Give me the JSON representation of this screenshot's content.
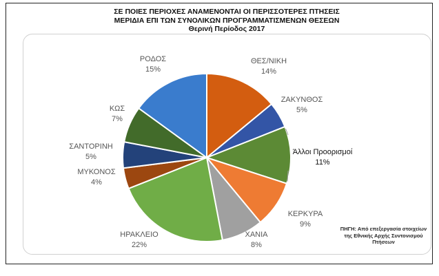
{
  "title_lines": [
    "ΣΕ ΠΟΙΕΣ ΠΕΡΙΟΧΕΣ ΑΝΑΜΕΝΟΝΤΑΙ ΟΙ ΠΕΡΙΣΣΟΤΕΡΕΣ ΠΤΗΣΕΙΣ",
    "ΜΕΡΙΔΙΑ ΕΠΙ ΤΩΝ ΣΥΝΟΛΙΚΩΝ ΠΡΟΓΡΑΜΜΑΤΙΣΜΕΝΩΝ ΘΕΣΕΩΝ",
    "Θερινή Περίοδος 2017"
  ],
  "source_lines": [
    "ΠΗΓΗ: Από επεξεργασία στοιχείων",
    "της Εθνικής Αρχής Συντονισμού",
    "Πτήσεων"
  ],
  "chart_data": {
    "type": "pie",
    "unit": "%",
    "slices": [
      {
        "label": "ΘΕΣ/ΝΙΚΗ",
        "value": 14,
        "color": "#d35d10"
      },
      {
        "label": "ΖΑΚΥΝΘΟΣ",
        "value": 5,
        "color": "#3355a6"
      },
      {
        "label": "Άλλοι Προορισμοί",
        "value": 11,
        "color": "#5c8a35"
      },
      {
        "label": "ΚΕΡΚΥΡΑ",
        "value": 9,
        "color": "#ee7b33"
      },
      {
        "label": "ΧΑΝΙΑ",
        "value": 8,
        "color": "#a0a0a0"
      },
      {
        "label": "ΗΡΑΚΛΕΙΟ",
        "value": 22,
        "color": "#70ad47"
      },
      {
        "label": "ΜΥΚΟΝΟΣ",
        "value": 4,
        "color": "#9c4710"
      },
      {
        "label": "ΣΑΝΤΟΡΙΝΗ",
        "value": 5,
        "color": "#23427a"
      },
      {
        "label": "ΚΩΣ",
        "value": 7,
        "color": "#426b2a"
      },
      {
        "label": "ΡΟΔΟΣ",
        "value": 15,
        "color": "#3a7ccd"
      }
    ]
  }
}
